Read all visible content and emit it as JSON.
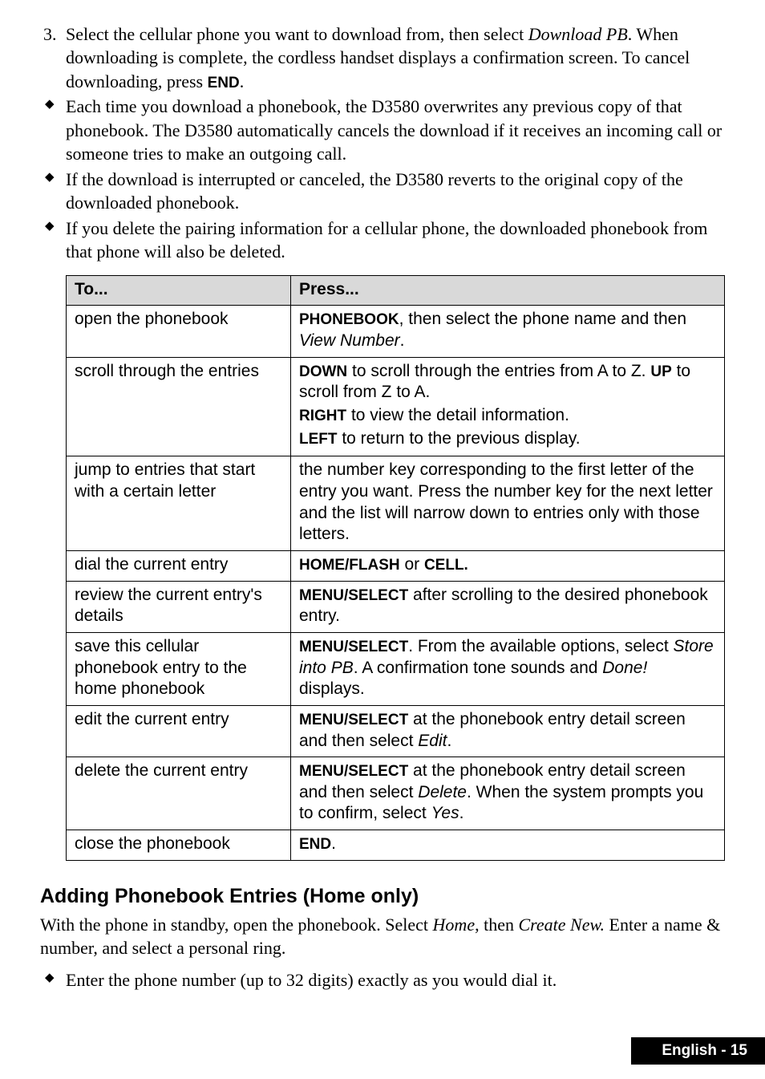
{
  "step3": {
    "num": "3.",
    "text_a": "Select the cellular phone you want to download from, then select ",
    "dl_pb": "Download PB",
    "text_b": ". When downloading is complete, the cordless handset displays a confirmation screen. To cancel downloading, press ",
    "end": "END",
    "text_c": "."
  },
  "bullets_top": [
    "Each time you download a phonebook, the D3580 overwrites any previous copy of that phonebook. The D3580 automatically cancels the download if it receives an incoming call or someone tries to make an outgoing call.",
    "If the download is interrupted or canceled, the D3580 reverts to the original copy of the downloaded phonebook.",
    "If you delete the pairing information for a cellular phone, the downloaded phonebook from that phone will also be deleted."
  ],
  "table": {
    "headers": [
      "To...",
      "Press..."
    ],
    "rows": [
      {
        "left": "open the phonebook",
        "r_parts": [
          {
            "t": "PHONEBOOK",
            "cls": "kb"
          },
          {
            "t": ", then select the phone name and then "
          },
          {
            "t": "View Number",
            "cls": "italic"
          },
          {
            "t": "."
          }
        ]
      },
      {
        "left": "scroll through the entries",
        "r_lines": [
          [
            {
              "t": "DOWN",
              "cls": "kb"
            },
            {
              "t": " to scroll through the entries from A to Z. "
            },
            {
              "t": "UP",
              "cls": "kb"
            },
            {
              "t": " to scroll from Z to A."
            }
          ],
          [
            {
              "t": "RIGHT",
              "cls": "kb"
            },
            {
              "t": " to view the detail information."
            }
          ],
          [
            {
              "t": "LEFT",
              "cls": "kb"
            },
            {
              "t": " to return to the previous display."
            }
          ]
        ]
      },
      {
        "left": "jump to entries that start with a certain letter",
        "r_parts": [
          {
            "t": "the number key corresponding to the first letter of the entry you want. Press the number key for the next letter and the list will narrow down to entries only with those letters."
          }
        ]
      },
      {
        "left": "dial the current entry",
        "r_parts": [
          {
            "t": "HOME/FLASH",
            "cls": "kb"
          },
          {
            "t": " or "
          },
          {
            "t": "CELL.",
            "cls": "kb"
          }
        ]
      },
      {
        "left": "review the current entry's details",
        "r_parts": [
          {
            "t": "MENU/SELECT",
            "cls": "kb"
          },
          {
            "t": " after scrolling to the desired phonebook entry."
          }
        ]
      },
      {
        "left": "save this cellular phonebook entry to the home phonebook",
        "r_parts": [
          {
            "t": "MENU/SELECT",
            "cls": "kb"
          },
          {
            "t": ". From the available options, select "
          },
          {
            "t": "Store into PB",
            "cls": "italic"
          },
          {
            "t": ". A confirmation tone sounds and "
          },
          {
            "t": "Done!",
            "cls": "italic"
          },
          {
            "t": " displays."
          }
        ]
      },
      {
        "left": "edit the current entry",
        "r_parts": [
          {
            "t": "MENU/SELECT",
            "cls": "kb"
          },
          {
            "t": " at the phonebook entry detail screen and then select "
          },
          {
            "t": "Edit",
            "cls": "italic"
          },
          {
            "t": "."
          }
        ]
      },
      {
        "left": "delete the current entry",
        "r_parts": [
          {
            "t": "MENU/SELECT",
            "cls": "kb"
          },
          {
            "t": " at the phonebook entry detail screen and then select "
          },
          {
            "t": "Delete",
            "cls": "italic"
          },
          {
            "t": ".  When the system prompts you to confirm, select "
          },
          {
            "t": "Yes",
            "cls": "italic"
          },
          {
            "t": "."
          }
        ]
      },
      {
        "left": "close the phonebook",
        "r_parts": [
          {
            "t": "END",
            "cls": "kb"
          },
          {
            "t": "."
          }
        ]
      }
    ]
  },
  "section_heading": "Adding Phonebook Entries (Home only)",
  "para": {
    "a": "With the phone in standby, open the phonebook. Select ",
    "home": "Home",
    "b": ", then ",
    "create": "Create New.",
    "c": " Enter a name & number, and select a personal ring."
  },
  "bullet_bottom": "Enter the phone number (up to 32 digits) exactly as you would dial it.",
  "footer": "English - 15"
}
